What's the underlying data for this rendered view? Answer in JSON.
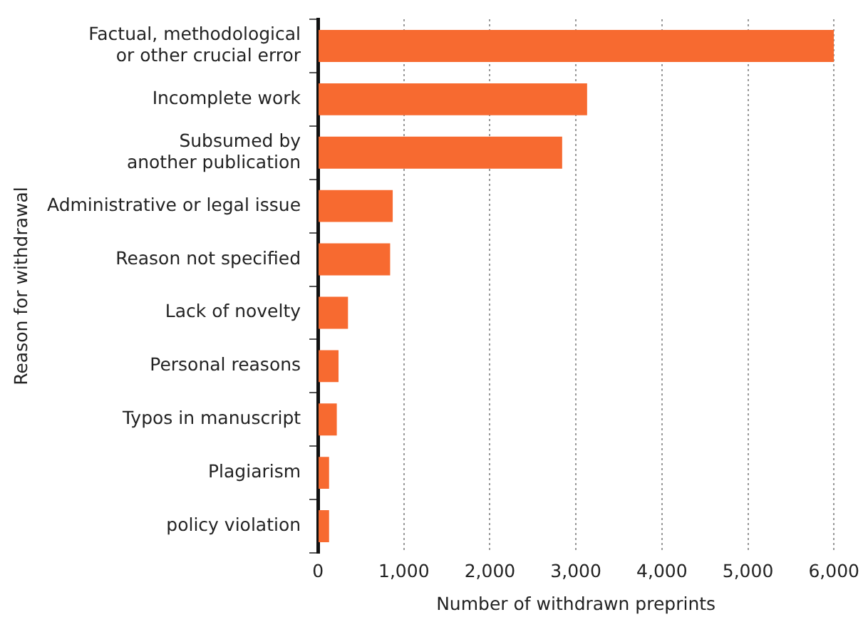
{
  "chart_data": {
    "type": "bar",
    "orientation": "horizontal",
    "categories": [
      "Factual, methodological\nor other crucial error",
      "Incomplete work",
      "Subsumed by\nanother publication",
      "Administrative or legal issue",
      "Reason not specified",
      "Lack of novelty",
      "Personal reasons",
      "Typos in manuscript",
      "Plagiarism",
      "policy violation"
    ],
    "values": [
      6000,
      3130,
      2840,
      870,
      840,
      350,
      240,
      220,
      130,
      130
    ],
    "color": "#f76a30",
    "xlabel": "Number of withdrawn preprints",
    "ylabel": "Reason for withdrawal",
    "xlim": [
      0,
      6000
    ],
    "xticks": [
      {
        "value": 0,
        "label": "0"
      },
      {
        "value": 1000,
        "label": "1,000"
      },
      {
        "value": 2000,
        "label": "2,000"
      },
      {
        "value": 3000,
        "label": "3,000"
      },
      {
        "value": 4000,
        "label": "4,000"
      },
      {
        "value": 5000,
        "label": "5,000"
      },
      {
        "value": 6000,
        "label": "6,000"
      }
    ],
    "grid": "x",
    "legend": false
  }
}
